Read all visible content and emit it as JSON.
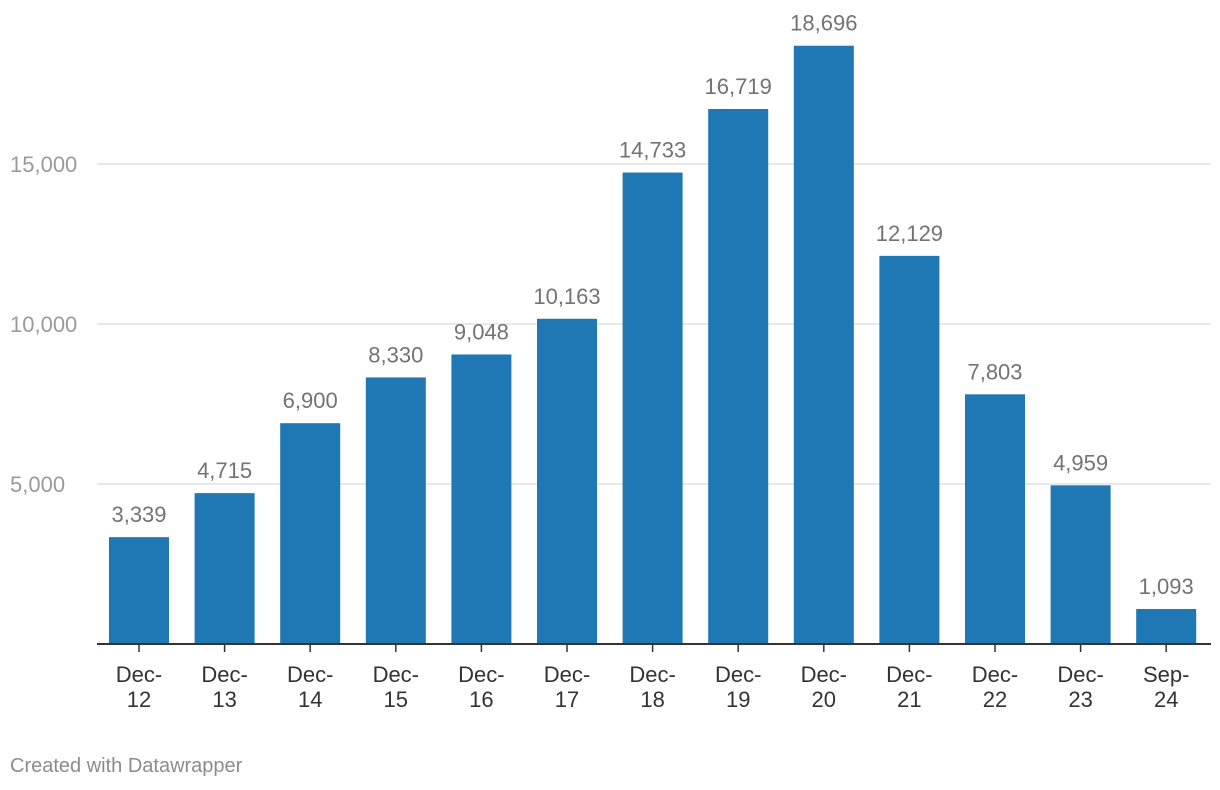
{
  "chart_data": {
    "type": "bar",
    "title": "",
    "xlabel": "",
    "ylabel": "",
    "categories": [
      [
        "Dec-",
        "12"
      ],
      [
        "Dec-",
        "13"
      ],
      [
        "Dec-",
        "14"
      ],
      [
        "Dec-",
        "15"
      ],
      [
        "Dec-",
        "16"
      ],
      [
        "Dec-",
        "17"
      ],
      [
        "Dec-",
        "18"
      ],
      [
        "Dec-",
        "19"
      ],
      [
        "Dec-",
        "20"
      ],
      [
        "Dec-",
        "21"
      ],
      [
        "Dec-",
        "22"
      ],
      [
        "Dec-",
        "23"
      ],
      [
        "Sep-",
        "24"
      ]
    ],
    "values": [
      3339,
      4715,
      6900,
      8330,
      9048,
      10163,
      14733,
      16719,
      18696,
      12129,
      7803,
      4959,
      1093
    ],
    "value_labels": [
      "3,339",
      "4,715",
      "6,900",
      "8,330",
      "9,048",
      "10,163",
      "14,733",
      "16,719",
      "18,696",
      "12,129",
      "7,803",
      "4,959",
      "1,093"
    ],
    "yticks": [
      5000,
      10000,
      15000
    ],
    "ytick_labels": [
      "5,000",
      "10,000",
      "15,000"
    ],
    "ylim": [
      0,
      20000
    ],
    "grid": true,
    "bar_color": "#1f77b4"
  },
  "footer": {
    "credit": "Created with Datawrapper"
  }
}
